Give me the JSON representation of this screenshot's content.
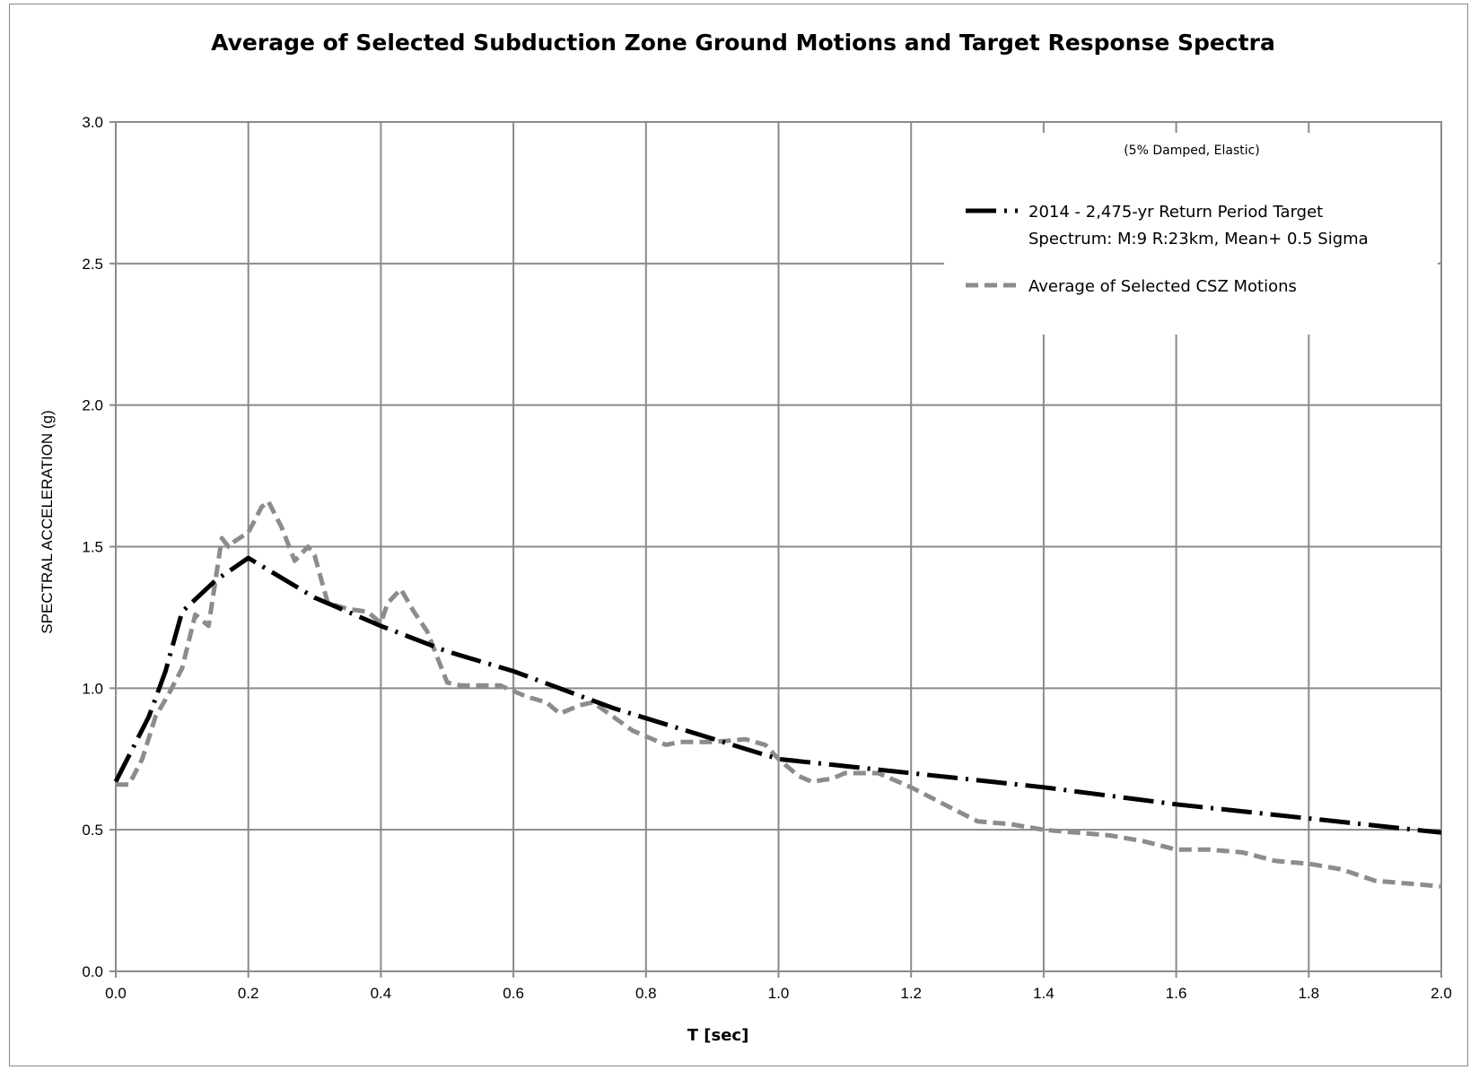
{
  "chart_data": {
    "type": "line",
    "title": "Average of Selected Subduction Zone Ground Motions and Target Response Spectra",
    "xlabel": "T [sec]",
    "ylabel": "SPECTRAL ACCELERATION (g)",
    "xlim": [
      0.0,
      2.0
    ],
    "ylim": [
      0.0,
      3.0
    ],
    "x_ticks": [
      "0.0",
      "0.2",
      "0.4",
      "0.6",
      "0.8",
      "1.0",
      "1.2",
      "1.4",
      "1.6",
      "1.8",
      "2.0"
    ],
    "y_ticks": [
      "0.0",
      "0.5",
      "1.0",
      "1.5",
      "2.0",
      "2.5",
      "3.0"
    ],
    "grid": true,
    "legend_position": "top-right",
    "annotation": "(5% Damped, Elastic)",
    "series": [
      {
        "name": "2014 - 2,475-yr Return Period Target Spectrum: M:9 R:23km, Mean+ 0.5 Sigma",
        "legend_lines": [
          "2014 - 2,475-yr Return Period Target",
          "Spectrum: M:9 R:23km, Mean+ 0.5 Sigma"
        ],
        "style": "dash-dot",
        "color": "#000000",
        "x": [
          0.0,
          0.05,
          0.075,
          0.1,
          0.15,
          0.2,
          0.3,
          0.4,
          0.5,
          0.6,
          0.75,
          1.0,
          1.2,
          1.4,
          1.6,
          1.8,
          2.0
        ],
        "y": [
          0.67,
          0.9,
          1.06,
          1.27,
          1.38,
          1.46,
          1.32,
          1.22,
          1.13,
          1.06,
          0.93,
          0.75,
          0.7,
          0.65,
          0.59,
          0.54,
          0.49
        ]
      },
      {
        "name": "Average of Selected CSZ Motions",
        "style": "dashed",
        "color": "#8c8c8c",
        "x": [
          0.0,
          0.02,
          0.04,
          0.06,
          0.08,
          0.1,
          0.12,
          0.14,
          0.16,
          0.17,
          0.18,
          0.2,
          0.22,
          0.23,
          0.25,
          0.27,
          0.29,
          0.3,
          0.32,
          0.35,
          0.38,
          0.4,
          0.41,
          0.43,
          0.45,
          0.47,
          0.49,
          0.5,
          0.52,
          0.55,
          0.58,
          0.6,
          0.62,
          0.65,
          0.67,
          0.7,
          0.72,
          0.75,
          0.78,
          0.8,
          0.83,
          0.85,
          0.9,
          0.95,
          0.98,
          1.0,
          1.03,
          1.05,
          1.08,
          1.1,
          1.15,
          1.2,
          1.25,
          1.3,
          1.35,
          1.4,
          1.45,
          1.5,
          1.55,
          1.6,
          1.65,
          1.7,
          1.75,
          1.8,
          1.85,
          1.9,
          1.95,
          2.0
        ],
        "y": [
          0.66,
          0.66,
          0.75,
          0.9,
          0.98,
          1.07,
          1.26,
          1.22,
          1.53,
          1.5,
          1.52,
          1.55,
          1.64,
          1.66,
          1.57,
          1.45,
          1.5,
          1.47,
          1.3,
          1.28,
          1.27,
          1.23,
          1.3,
          1.35,
          1.27,
          1.2,
          1.08,
          1.02,
          1.01,
          1.01,
          1.01,
          0.99,
          0.97,
          0.95,
          0.91,
          0.94,
          0.95,
          0.9,
          0.85,
          0.83,
          0.8,
          0.81,
          0.81,
          0.82,
          0.8,
          0.75,
          0.69,
          0.67,
          0.68,
          0.7,
          0.7,
          0.65,
          0.59,
          0.53,
          0.52,
          0.5,
          0.49,
          0.48,
          0.46,
          0.43,
          0.43,
          0.42,
          0.39,
          0.38,
          0.36,
          0.32,
          0.31,
          0.3
        ]
      }
    ]
  }
}
